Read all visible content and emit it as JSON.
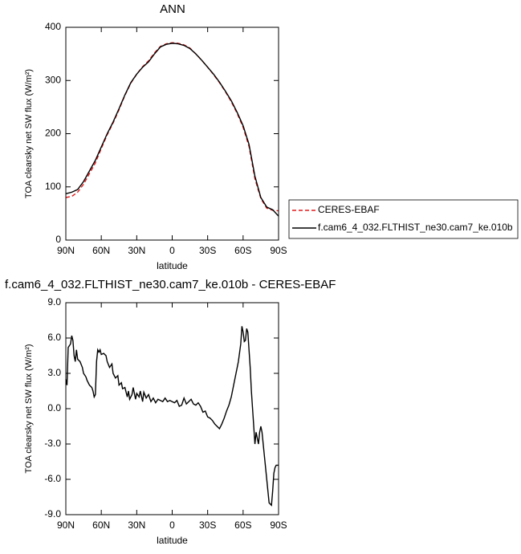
{
  "chart_data": [
    {
      "type": "line",
      "title": "ANN",
      "x_label": "latitude",
      "y_label": "TOA clearsky net SW flux (W/m²)",
      "x": [
        90,
        85,
        80,
        75,
        70,
        65,
        60,
        55,
        50,
        45,
        40,
        35,
        30,
        25,
        20,
        15,
        10,
        5,
        0,
        -5,
        -10,
        -15,
        -20,
        -25,
        -30,
        -35,
        -40,
        -45,
        -50,
        -55,
        -60,
        -65,
        -70,
        -75,
        -80,
        -85,
        -90
      ],
      "series": [
        {
          "name": "CERES-EBAF",
          "color": "#e41a1c",
          "dash": "dashed",
          "values": [
            80,
            82,
            90,
            105,
            125,
            145,
            172,
            198,
            220,
            245,
            272,
            295,
            312,
            326,
            337,
            352,
            364,
            369,
            371,
            370,
            367,
            361,
            350,
            338,
            325,
            311,
            296,
            279,
            260,
            238,
            212,
            176,
            115,
            78,
            60,
            56,
            55
          ]
        },
        {
          "name": "f.cam6_4_032.FLTHIST_ne30.cam7_ke.010b",
          "color": "#000000",
          "dash": "solid",
          "values": [
            87,
            90,
            95,
            110,
            130,
            150,
            175,
            200,
            222,
            247,
            273,
            296,
            312,
            325,
            335,
            350,
            363,
            368,
            370,
            369,
            366,
            360,
            350,
            338,
            325,
            312,
            297,
            280,
            262,
            240,
            215,
            180,
            120,
            80,
            62,
            57,
            45
          ]
        }
      ],
      "xlim": [
        90,
        -90
      ],
      "xticks": [
        {
          "value": 90,
          "label": "90N"
        },
        {
          "value": 60,
          "label": "60N"
        },
        {
          "value": 30,
          "label": "30N"
        },
        0,
        {
          "value": -30,
          "label": "30S"
        },
        {
          "value": -60,
          "label": "60S"
        },
        {
          "value": -90,
          "label": "90S"
        }
      ],
      "ylim": [
        0,
        400
      ],
      "yticks": [
        0,
        100,
        200,
        300,
        400
      ],
      "legend": "right"
    },
    {
      "type": "line",
      "title": "f.cam6_4_032.FLTHIST_ne30.cam7_ke.010b - CERES-EBAF",
      "x_label": "latitude",
      "y_label": "TOA clearsky net SW flux (W/m²)",
      "x": [
        90,
        89,
        88,
        86,
        85,
        84,
        83,
        82,
        81,
        80,
        78,
        76,
        75,
        73,
        72,
        70,
        68,
        67,
        66,
        65,
        64,
        63,
        62,
        61,
        60,
        58,
        56,
        55,
        53,
        51,
        50,
        48,
        46,
        45,
        43,
        42,
        40,
        38,
        37,
        36,
        34,
        33,
        31,
        30,
        28,
        27,
        25,
        24,
        22,
        20,
        18,
        16,
        14,
        12,
        10,
        8,
        6,
        4,
        2,
        0,
        -2,
        -4,
        -6,
        -8,
        -10,
        -12,
        -14,
        -16,
        -18,
        -20,
        -22,
        -24,
        -26,
        -28,
        -30,
        -32,
        -34,
        -36,
        -38,
        -40,
        -42,
        -44,
        -46,
        -48,
        -50,
        -52,
        -54,
        -56,
        -58,
        -59,
        -60,
        -61,
        -62,
        -63,
        -64,
        -65,
        -66,
        -67,
        -68,
        -69,
        -70,
        -71,
        -72,
        -73,
        -74,
        -75,
        -76,
        -77,
        -78,
        -79,
        -80,
        -82,
        -84,
        -85,
        -86,
        -87,
        -88,
        -90
      ],
      "series": [
        {
          "name": "f.cam6_4_032.FLTHIST_ne30.cam7_ke.010b - CERES-EBAF",
          "color": "#000000",
          "dash": "solid",
          "values": [
            2.5,
            2.0,
            5.2,
            5.5,
            6.2,
            5.8,
            4.5,
            4.0,
            5.0,
            4.2,
            4.0,
            3.5,
            3.0,
            2.7,
            2.4,
            2.0,
            1.8,
            1.5,
            1.0,
            1.2,
            4.0,
            5.0,
            4.8,
            5.0,
            4.6,
            4.7,
            4.5,
            4.0,
            3.5,
            3.8,
            3.0,
            2.6,
            2.8,
            2.0,
            2.2,
            1.7,
            1.8,
            1.0,
            1.5,
            0.8,
            1.2,
            1.8,
            0.8,
            1.3,
            1.0,
            1.5,
            0.6,
            1.4,
            0.9,
            1.2,
            0.6,
            0.9,
            0.5,
            0.8,
            0.7,
            0.6,
            0.9,
            0.6,
            0.7,
            0.6,
            0.5,
            0.7,
            0.2,
            0.3,
            0.9,
            0.4,
            0.6,
            0.8,
            0.4,
            0.3,
            0.5,
            0.2,
            -0.3,
            -0.2,
            -0.7,
            -0.8,
            -1.0,
            -1.3,
            -1.5,
            -1.7,
            -1.3,
            -0.8,
            -0.2,
            0.3,
            1.0,
            2.0,
            3.0,
            4.0,
            5.5,
            7.0,
            6.5,
            5.7,
            5.8,
            6.8,
            6.5,
            5.0,
            3.5,
            1.5,
            0,
            -1.5,
            -3.0,
            -2.0,
            -2.5,
            -3.0,
            -2.0,
            -1.5,
            -2.0,
            -3.0,
            -4.0,
            -5.0,
            -6.0,
            -8.0,
            -8.2,
            -7.0,
            -5.5,
            -5.0,
            -4.8,
            -4.8
          ]
        }
      ],
      "xlim": [
        90,
        -90
      ],
      "xticks": [
        {
          "value": 90,
          "label": "90N"
        },
        {
          "value": 60,
          "label": "60N"
        },
        {
          "value": 30,
          "label": "30N"
        },
        0,
        {
          "value": -30,
          "label": "30S"
        },
        {
          "value": -60,
          "label": "60S"
        },
        {
          "value": -90,
          "label": "90S"
        }
      ],
      "ylim": [
        -9,
        9
      ],
      "yticks": [
        {
          "value": -9,
          "label": "-9.0"
        },
        {
          "value": -6,
          "label": "-6.0"
        },
        {
          "value": -3,
          "label": "-3.0"
        },
        {
          "value": 0,
          "label": "0.0"
        },
        {
          "value": 3,
          "label": "3.0"
        },
        {
          "value": 6,
          "label": "6.0"
        },
        {
          "value": 9,
          "label": "9.0"
        }
      ]
    }
  ]
}
